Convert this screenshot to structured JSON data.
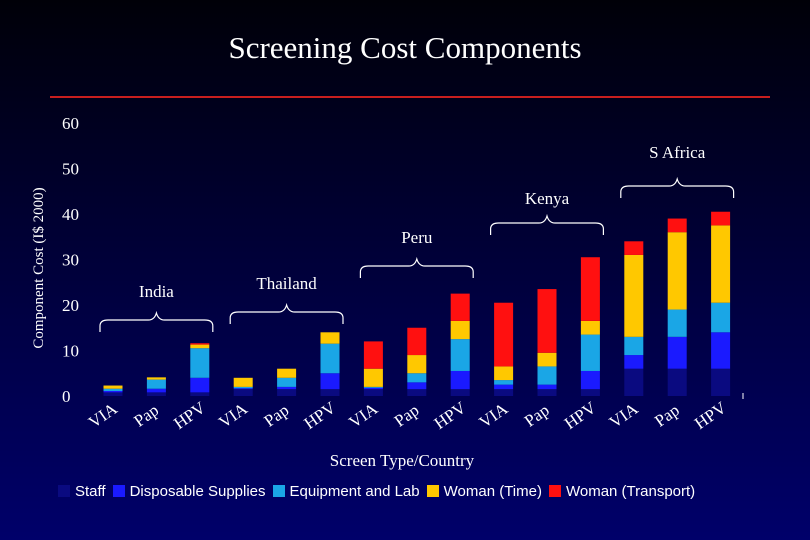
{
  "chart_data": {
    "type": "bar",
    "stacked": true,
    "title": "Screening Cost Components",
    "xlabel": "Screen Type/Country",
    "ylabel": "Component Cost (I$ 2000)",
    "ylim": [
      0,
      60
    ],
    "yticks": [
      "0",
      "10",
      "20",
      "30",
      "40",
      "50",
      "60"
    ],
    "categories": [
      "VIA",
      "Pap",
      "HPV",
      "VIA",
      "Pap",
      "HPV",
      "VIA",
      "Pap",
      "HPV",
      "VIA",
      "Pap",
      "HPV",
      "VIA",
      "Pap",
      "HPV"
    ],
    "groups": [
      {
        "label": "India",
        "categories": [
          0,
          1,
          2
        ]
      },
      {
        "label": "Thailand",
        "categories": [
          3,
          4,
          5
        ]
      },
      {
        "label": "Peru",
        "categories": [
          6,
          7,
          8
        ]
      },
      {
        "label": "Kenya",
        "categories": [
          9,
          10,
          11
        ]
      },
      {
        "label": "S Africa",
        "categories": [
          12,
          13,
          14
        ]
      }
    ],
    "series": [
      {
        "name": "Staff",
        "color": "#0a0a80",
        "values": [
          0.8,
          0.8,
          0.8,
          1.5,
          1.5,
          1.5,
          1.5,
          1.5,
          1.5,
          1.5,
          1.5,
          1.5,
          6.0,
          6.0,
          6.0
        ]
      },
      {
        "name": "Disposable Supplies",
        "color": "#1a1aff",
        "values": [
          0.3,
          0.8,
          3.2,
          0.2,
          0.5,
          3.5,
          0.3,
          1.5,
          4.0,
          1.0,
          1.0,
          4.0,
          3.0,
          7.0,
          8.0
        ]
      },
      {
        "name": "Equipment and Lab",
        "color": "#1aa6e6",
        "values": [
          0.5,
          2.0,
          6.5,
          0.3,
          2.0,
          6.5,
          0.2,
          2.0,
          7.0,
          1.0,
          4.0,
          8.0,
          4.0,
          6.0,
          6.5
        ]
      },
      {
        "name": "Woman (Time)",
        "color": "#ffc800",
        "values": [
          0.7,
          0.5,
          0.8,
          2.0,
          2.0,
          2.5,
          4.0,
          4.0,
          4.0,
          3.0,
          3.0,
          3.0,
          18.0,
          17.0,
          17.0
        ]
      },
      {
        "name": "Woman (Transport)",
        "color": "#ff1010",
        "values": [
          0.0,
          0.0,
          0.3,
          0.0,
          0.0,
          0.0,
          6.0,
          6.0,
          6.0,
          14.0,
          14.0,
          14.0,
          3.0,
          3.0,
          3.0
        ]
      }
    ],
    "legend_position": "bottom",
    "grid": false
  }
}
